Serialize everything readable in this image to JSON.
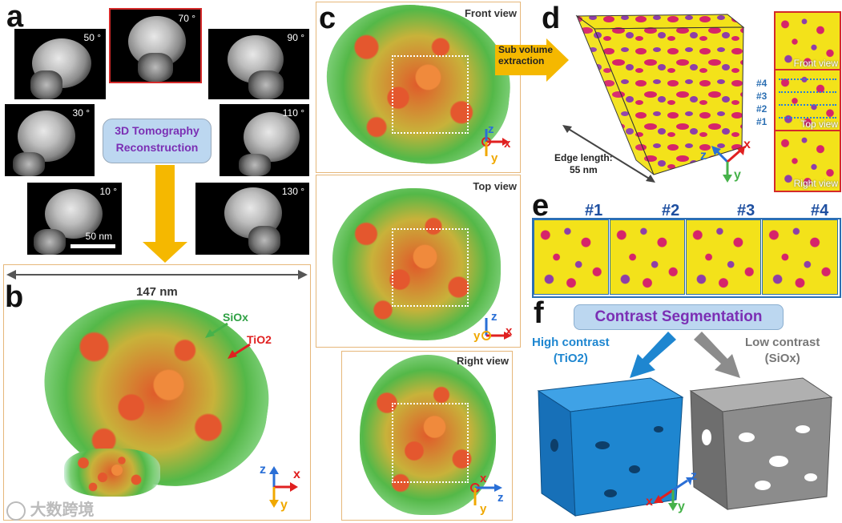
{
  "panels": {
    "a": {
      "label": "a",
      "angles": [
        "50 °",
        "70 °",
        "90 °",
        "30 °",
        "110 °",
        "10 °",
        "130 °"
      ],
      "scale_bar": "50 nm",
      "badge_line1": "3D Tomography",
      "badge_line2": "Reconstruction"
    },
    "b": {
      "label": "b",
      "width_label": "147 nm",
      "siox_label": "SiOx",
      "tio2_label": "TiO2",
      "axes": {
        "z": "z",
        "x": "x",
        "y": "y"
      }
    },
    "c": {
      "label": "c",
      "views": [
        "Front view",
        "Top view",
        "Right view"
      ],
      "sub_volume_line1": "Sub volume",
      "sub_volume_line2": "extraction",
      "axes_front": {
        "z": "z",
        "x": "x",
        "y": "y"
      },
      "axes_top": {
        "z": "z",
        "x": "x",
        "y": "y"
      },
      "axes_right": {
        "x": "x",
        "z": "z",
        "y": "y"
      }
    },
    "d": {
      "label": "d",
      "edge_line1": "Edge length:",
      "edge_line2": "55 nm",
      "side_views": [
        "Front view",
        "Top view",
        "Right view"
      ],
      "slice_marks": [
        "#4",
        "#3",
        "#2",
        "#1"
      ],
      "axes": {
        "z": "z",
        "x": "x",
        "y": "y"
      }
    },
    "e": {
      "label": "e",
      "slices": [
        "#1",
        "#2",
        "#3",
        "#4"
      ]
    },
    "f": {
      "label": "f",
      "title": "Contrast Segmentation",
      "high_line1": "High contrast",
      "high_line2": "(TiO2)",
      "low_line1": "Low contrast",
      "low_line2": "(SiOx)",
      "axes": {
        "z": "z",
        "x": "x",
        "y": "y"
      }
    }
  },
  "watermark": "大数跨境",
  "colors": {
    "orange_arrow": "#f5b800",
    "badge_bg": "#bcd7f0",
    "badge_text": "#7b2fb4",
    "cube_yellow": "#f3e21a",
    "cube_magenta": "#d6246a",
    "tio2_blue": "#1e86d0",
    "siox_gray": "#8c8c8c",
    "axis_red": "#e02020",
    "axis_blue": "#2a6fd6",
    "axis_gold": "#f0a800"
  }
}
